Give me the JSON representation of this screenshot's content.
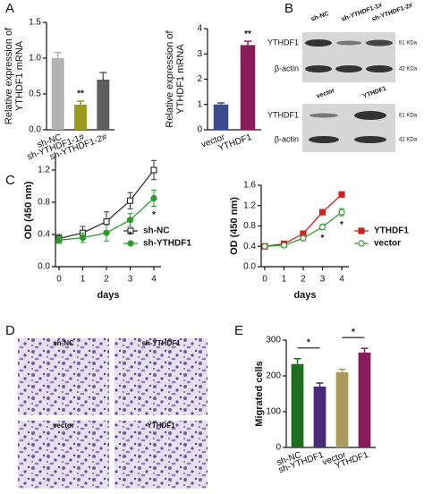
{
  "panels": [
    "A",
    "B",
    "C",
    "D",
    "E"
  ],
  "blots": [
    {
      "lanes": [
        "sh-NC",
        "sh-YTHDF1-1#",
        "sh-YTHDF1-2#"
      ],
      "rows": [
        "YTHDF1",
        "β-actin"
      ],
      "sizes": [
        "61 KDa",
        "42 KDa"
      ]
    },
    {
      "lanes": [
        "vector",
        "YTHDF1"
      ],
      "rows": [
        "YTHDF1",
        "β-actin"
      ],
      "sizes": [
        "61 KDa",
        "42 KDa"
      ]
    }
  ],
  "images": [
    "sh-NC",
    "sh-YTHDF1",
    "vector",
    "YTHDF1"
  ],
  "chart_data": [
    {
      "type": "bar",
      "ylabel": [
        "Relative expression of",
        "YTHDF1 mRNA"
      ],
      "categories": [
        "sh-NC",
        "sh-YTHDF1-1#",
        "sh-YTHDF1-2#"
      ],
      "values": [
        1.0,
        0.35,
        0.7
      ],
      "errors": [
        0.08,
        0.05,
        0.1
      ],
      "colors": [
        "#b3b3b3",
        "#9c9a1c",
        "#5e5e5e"
      ],
      "ylim": [
        0,
        1.5
      ],
      "yticks": [
        {
          "value": 0,
          "label": "0.0"
        },
        {
          "value": 0.5,
          "label": "0.5"
        },
        {
          "value": 1,
          "label": "1.0"
        },
        {
          "value": 1.5,
          "label": "1.5"
        }
      ],
      "annotations": [
        {
          "text": "**",
          "category": "sh-YTHDF1-1#"
        }
      ]
    },
    {
      "type": "bar",
      "ylabel": [
        "Relative expression of",
        "YTHDF1 mRNA"
      ],
      "categories": [
        "vector",
        "YTHDF1"
      ],
      "values": [
        1.0,
        3.35
      ],
      "errors": [
        0.06,
        0.15
      ],
      "colors": [
        "#3a4a8e",
        "#8a1c5c"
      ],
      "ylim": [
        0,
        4
      ],
      "yticks": [
        0,
        1,
        2,
        3,
        4
      ],
      "annotations": [
        {
          "text": "**",
          "category": "YTHDF1"
        }
      ]
    },
    {
      "type": "line",
      "ylabel": "OD (450 nm)",
      "xlabel": "days",
      "x": [
        0,
        1,
        2,
        3,
        4
      ],
      "xlim": [
        0,
        4
      ],
      "xticks": [
        0,
        1,
        2,
        3,
        4
      ],
      "ylim": [
        0,
        1.4
      ],
      "yticks": [
        {
          "value": 0,
          "label": "0.0"
        },
        {
          "value": 0.4,
          "label": "0.4"
        },
        {
          "value": 0.8,
          "label": "0.8"
        },
        {
          "value": 1.2,
          "label": "1.2"
        }
      ],
      "series": [
        {
          "name": "sh-NC",
          "color": "#333333",
          "marker": "open-square",
          "values": [
            0.35,
            0.42,
            0.56,
            0.82,
            1.2
          ],
          "errors": [
            0.05,
            0.08,
            0.12,
            0.1,
            0.12
          ]
        },
        {
          "name": "sh-YTHDF1",
          "color": "#2e9a2e",
          "marker": "circle",
          "values": [
            0.33,
            0.36,
            0.42,
            0.58,
            0.85
          ],
          "errors": [
            0.04,
            0.06,
            0.1,
            0.08,
            0.1
          ]
        }
      ],
      "annotations": [
        {
          "text": "*",
          "x": 3
        },
        {
          "text": "*",
          "x": 4
        }
      ]
    },
    {
      "type": "line",
      "ylabel": "OD (450 nm)",
      "xlabel": "days",
      "x": [
        0,
        1,
        2,
        3,
        4
      ],
      "xlim": [
        0,
        4
      ],
      "xticks": [
        0,
        1,
        2,
        3,
        4
      ],
      "ylim": [
        0,
        1.6
      ],
      "yticks": [
        {
          "value": 0,
          "label": "0.0"
        },
        {
          "value": 0.4,
          "label": "0.4"
        },
        {
          "value": 0.8,
          "label": "0.8"
        },
        {
          "value": 1.2,
          "label": "1.2"
        },
        {
          "value": 1.6,
          "label": "1.6"
        }
      ],
      "series": [
        {
          "name": "YTHDF1",
          "color": "#cc2222",
          "marker": "square",
          "values": [
            0.4,
            0.45,
            0.65,
            1.07,
            1.42
          ],
          "errors": [
            0.03,
            0.04,
            0.05,
            0.05,
            0.04
          ]
        },
        {
          "name": "vector",
          "color": "#3a9a3a",
          "marker": "open-circle",
          "values": [
            0.4,
            0.42,
            0.56,
            0.78,
            1.07
          ],
          "errors": [
            0.03,
            0.04,
            0.05,
            0.05,
            0.07
          ]
        }
      ],
      "annotations": [
        {
          "text": "*",
          "x": 3
        },
        {
          "text": "*",
          "x": 4
        }
      ]
    },
    {
      "type": "bar",
      "ylabel": "Migrated cells",
      "categories": [
        "sh-NC",
        "sh-YTHDF1",
        "vector",
        "YTHDF1"
      ],
      "values": [
        233,
        170,
        210,
        265
      ],
      "errors": [
        15,
        10,
        8,
        12
      ],
      "colors": [
        "#1f6e1f",
        "#4b2b7b",
        "#a99b5b",
        "#8a1c5c"
      ],
      "ylim": [
        0,
        300
      ],
      "yticks": [
        0,
        100,
        200,
        300
      ],
      "annotations": [
        {
          "text": "*",
          "from": "sh-NC",
          "to": "sh-YTHDF1"
        },
        {
          "text": "*",
          "from": "vector",
          "to": "YTHDF1"
        }
      ]
    }
  ]
}
